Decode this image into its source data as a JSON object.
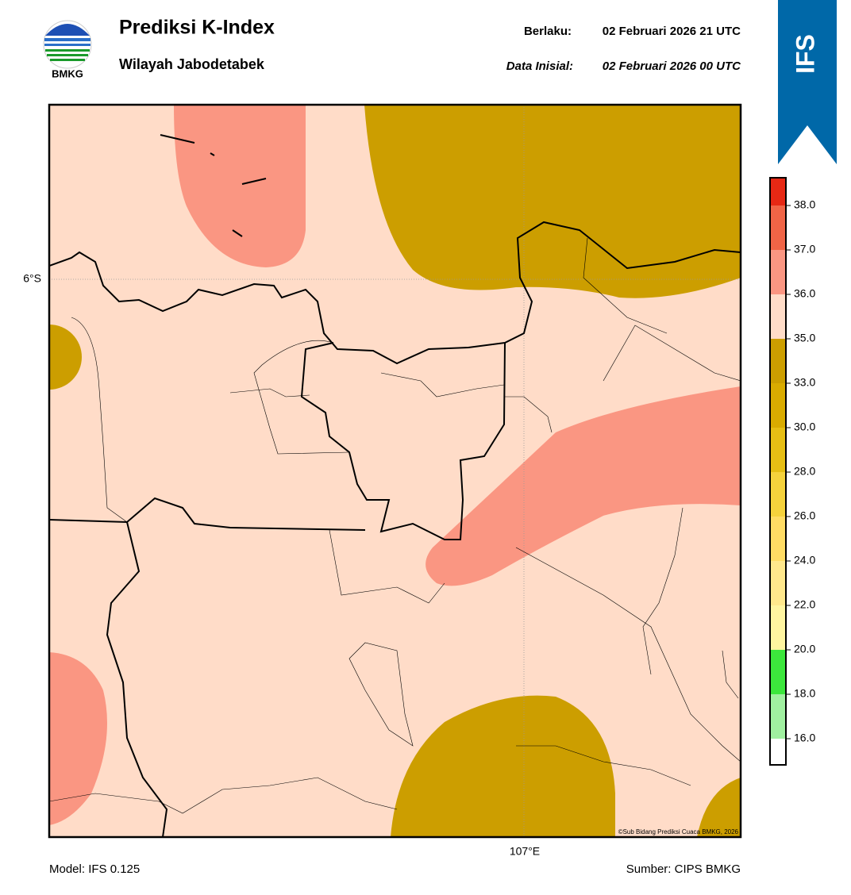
{
  "header": {
    "title": "Prediksi K-Index",
    "subtitle": "Wilayah Jabodetabek",
    "logo_text": "BMKG",
    "valid_label": "Berlaku:",
    "valid_time": "02 Februari 2026 21 UTC",
    "init_label": "Data Inisial:",
    "init_time": "02 Februari 2026 00 UTC",
    "badge": "IFS"
  },
  "map": {
    "lat_label": "6°S",
    "lon_label": "107°E",
    "copyright": "©Sub Bidang Prediksi Cuaca BMKG, 2026"
  },
  "colorbar": {
    "ticks": [
      {
        "value": 16,
        "label": "16.0"
      },
      {
        "value": 18,
        "label": "18.0"
      },
      {
        "value": 20,
        "label": "20.0"
      },
      {
        "value": 22,
        "label": "22.0"
      },
      {
        "value": 24,
        "label": "24.0"
      },
      {
        "value": 26,
        "label": "26.0"
      },
      {
        "value": 28,
        "label": "28.0"
      },
      {
        "value": 30,
        "label": "30.0"
      },
      {
        "value": 33,
        "label": "33.0"
      },
      {
        "value": 35,
        "label": "35.0"
      },
      {
        "value": 36,
        "label": "36.0"
      },
      {
        "value": 37,
        "label": "37.0"
      },
      {
        "value": 38,
        "label": "38.0"
      }
    ],
    "colors": [
      "#ffffff",
      "#a0f0a0",
      "#3ce63c",
      "#fff5a0",
      "#ffe88c",
      "#ffdc64",
      "#f5d23c",
      "#e6be14",
      "#d9ab00",
      "#cc9e00",
      "#ffdcc8",
      "#fa9682",
      "#f06446",
      "#e62814"
    ]
  },
  "footer": {
    "model": "Model: IFS 0.125",
    "source": "Sumber: CIPS BMKG"
  }
}
